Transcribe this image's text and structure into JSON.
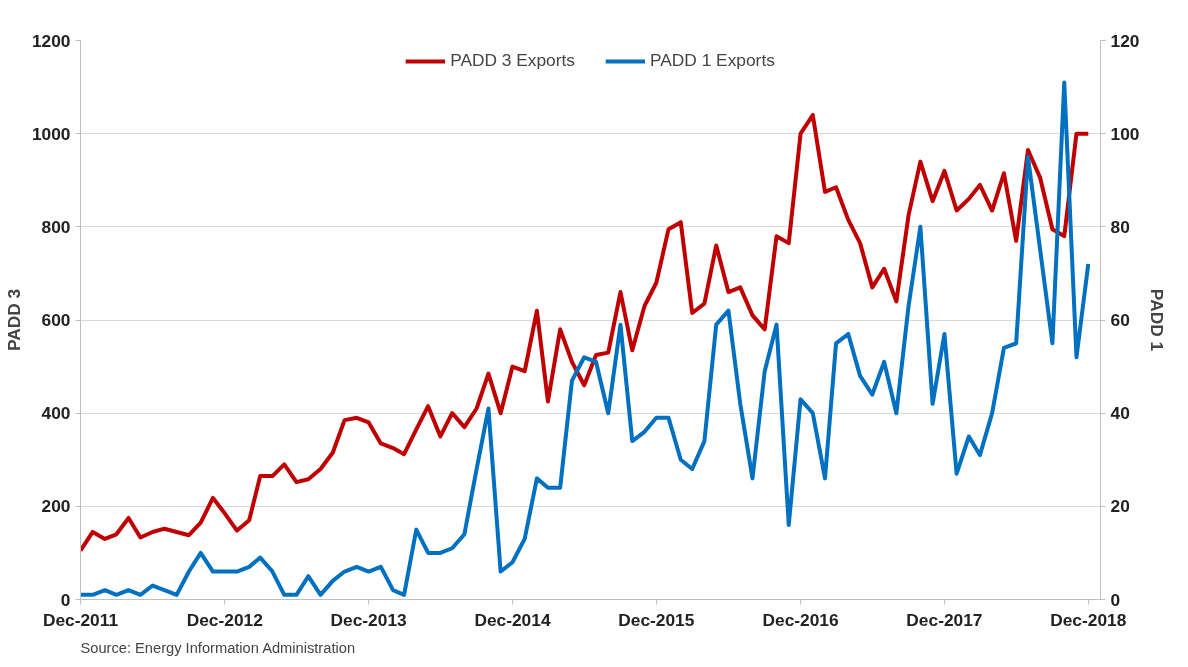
{
  "chart_data": {
    "type": "line",
    "x": [
      "2011-12",
      "2012-01",
      "2012-02",
      "2012-03",
      "2012-04",
      "2012-05",
      "2012-06",
      "2012-07",
      "2012-08",
      "2012-09",
      "2012-10",
      "2012-11",
      "2012-12",
      "2013-01",
      "2013-02",
      "2013-03",
      "2013-04",
      "2013-05",
      "2013-06",
      "2013-07",
      "2013-08",
      "2013-09",
      "2013-10",
      "2013-11",
      "2013-12",
      "2014-01",
      "2014-02",
      "2014-03",
      "2014-04",
      "2014-05",
      "2014-06",
      "2014-07",
      "2014-08",
      "2014-09",
      "2014-10",
      "2014-11",
      "2014-12",
      "2015-01",
      "2015-02",
      "2015-03",
      "2015-04",
      "2015-05",
      "2015-06",
      "2015-07",
      "2015-08",
      "2015-09",
      "2015-10",
      "2015-11",
      "2015-12",
      "2016-01",
      "2016-02",
      "2016-03",
      "2016-04",
      "2016-05",
      "2016-06",
      "2016-07",
      "2016-08",
      "2016-09",
      "2016-10",
      "2016-11",
      "2016-12",
      "2017-01",
      "2017-02",
      "2017-03",
      "2017-04",
      "2017-05",
      "2017-06",
      "2017-07",
      "2017-08",
      "2017-09",
      "2017-10",
      "2017-11",
      "2017-12",
      "2018-01",
      "2018-02",
      "2018-03",
      "2018-04",
      "2018-05",
      "2018-06",
      "2018-07",
      "2018-08",
      "2018-09",
      "2018-10",
      "2018-11",
      "2018-12"
    ],
    "series": [
      {
        "name": "PADD 3 Exports",
        "color": "#c00000",
        "values": [
          105,
          145,
          130,
          140,
          175,
          133,
          145,
          152,
          145,
          138,
          165,
          218,
          185,
          148,
          170,
          265,
          265,
          290,
          252,
          258,
          280,
          315,
          385,
          390,
          380,
          335,
          325,
          312,
          365,
          415,
          350,
          400,
          370,
          410,
          485,
          400,
          500,
          490,
          620,
          425,
          580,
          510,
          460,
          525,
          530,
          660,
          535,
          630,
          680,
          795,
          810,
          615,
          635,
          760,
          660,
          670,
          610,
          580,
          780,
          765,
          1000,
          1040,
          875,
          885,
          815,
          765,
          670,
          710,
          640,
          825,
          940,
          855,
          920,
          835,
          860,
          890,
          835,
          915,
          770,
          965,
          905,
          795,
          780,
          1000,
          1000
        ]
      },
      {
        "name": "PADD 1 Exports",
        "color": "#0070c0",
        "axis": "y2",
        "values": [
          1,
          1,
          2,
          1,
          2,
          1,
          3,
          2,
          1,
          6,
          10,
          6,
          6,
          6,
          7,
          9,
          6,
          1,
          1,
          5,
          1,
          4,
          6,
          7,
          6,
          7,
          2,
          1,
          15,
          10,
          10,
          11,
          14,
          28,
          41,
          6,
          8,
          13,
          26,
          24,
          24,
          47,
          52,
          51,
          40,
          59,
          34,
          36,
          39,
          39,
          30,
          28,
          34,
          59,
          62,
          42,
          26,
          49,
          59,
          16,
          43,
          40,
          26,
          55,
          57,
          48,
          44,
          51,
          40,
          63,
          80,
          42,
          57,
          27,
          35,
          31,
          40,
          54,
          55,
          95,
          75,
          55,
          111,
          52,
          72
        ]
      }
    ],
    "xlim": [
      "2011-12",
      "2019-01"
    ],
    "xticks": [
      {
        "value": "2011-12",
        "label": "Dec-2011"
      },
      {
        "value": "2012-12",
        "label": "Dec-2012"
      },
      {
        "value": "2013-12",
        "label": "Dec-2013"
      },
      {
        "value": "2014-12",
        "label": "Dec-2014"
      },
      {
        "value": "2015-12",
        "label": "Dec-2015"
      },
      {
        "value": "2016-12",
        "label": "Dec-2016"
      },
      {
        "value": "2017-12",
        "label": "Dec-2017"
      },
      {
        "value": "2018-12",
        "label": "Dec-2018"
      }
    ],
    "ylim": [
      0,
      1200
    ],
    "yticks": [
      0,
      200,
      400,
      600,
      800,
      1000,
      1200
    ],
    "y2lim": [
      0,
      120
    ],
    "y2ticks": [
      0,
      20,
      40,
      60,
      80,
      100,
      120
    ],
    "ylabel": "PADD 3",
    "y2label": "PADD 1",
    "grid": "y",
    "legend": "top",
    "annotations": [
      "Source: Energy Information Administration"
    ]
  }
}
